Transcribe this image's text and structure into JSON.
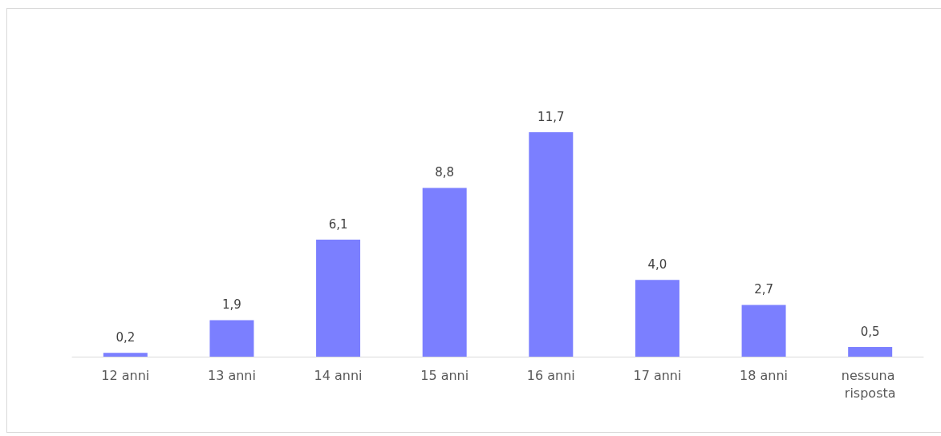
{
  "chart_data": {
    "type": "bar",
    "categories": [
      "12 anni",
      "13 anni",
      "14 anni",
      "15 anni",
      "16 anni",
      "17 anni",
      "18 anni",
      "nessuna risposta"
    ],
    "values": [
      0.2,
      1.9,
      6.1,
      8.8,
      11.7,
      4.0,
      2.7,
      0.5
    ],
    "value_labels": [
      "0,2",
      "1,9",
      "6,1",
      "8,8",
      "11,7",
      "4,0",
      "2,7",
      "0,5"
    ],
    "color": "#7b7fff"
  }
}
